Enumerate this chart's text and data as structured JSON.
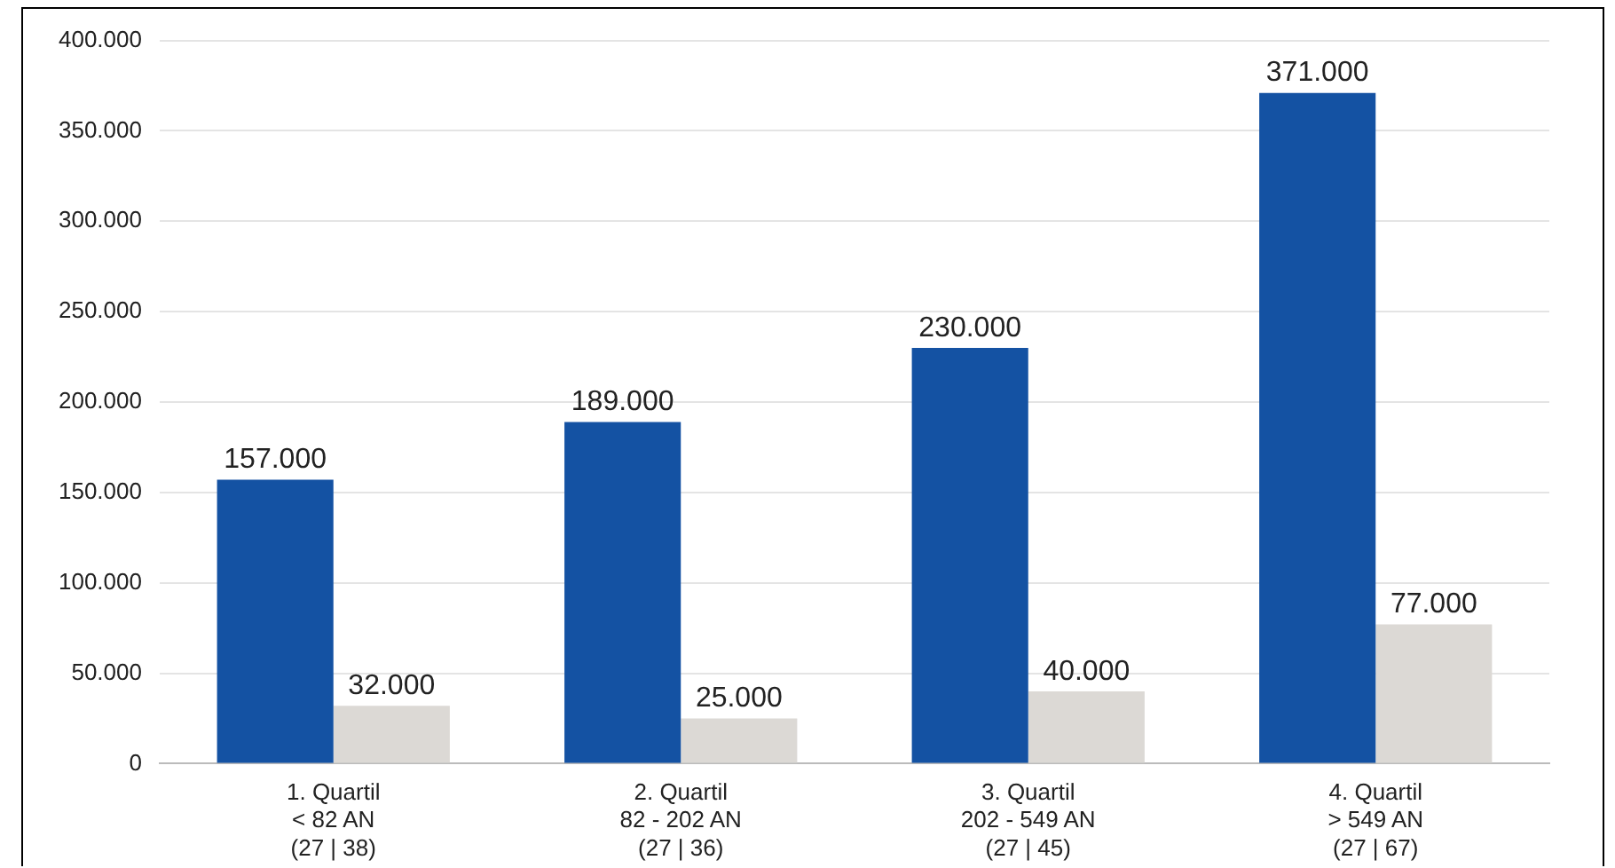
{
  "chart_data": {
    "type": "bar",
    "categories": [
      "1. Quartil\n< 82 AN\n(27 | 38)",
      "2. Quartil\n82 - 202 AN\n(27 | 36)",
      "3. Quartil\n202 - 549 AN\n(27 | 45)",
      "4. Quartil\n> 549 AN\n(27 | 67)"
    ],
    "series": [
      {
        "color": "#1452a3",
        "values": [
          157000,
          189000,
          230000,
          371000
        ],
        "value_labels": [
          "157.000",
          "189.000",
          "230.000",
          "371.000"
        ]
      },
      {
        "color": "#dcd9d5",
        "values": [
          32000,
          25000,
          40000,
          77000
        ],
        "value_labels": [
          "32.000",
          "25.000",
          "40.000",
          "77.000"
        ]
      }
    ],
    "ylim": [
      0,
      400000
    ],
    "yticks": [
      {
        "value": 0,
        "label": "0"
      },
      {
        "value": 50000,
        "label": "50.000"
      },
      {
        "value": 100000,
        "label": "100.000"
      },
      {
        "value": 150000,
        "label": "150.000"
      },
      {
        "value": 200000,
        "label": "200.000"
      },
      {
        "value": 250000,
        "label": "250.000"
      },
      {
        "value": 300000,
        "label": "300.000"
      },
      {
        "value": 350000,
        "label": "350.000"
      },
      {
        "value": 400000,
        "label": "400.000"
      }
    ],
    "grid": "y",
    "legend": false
  }
}
